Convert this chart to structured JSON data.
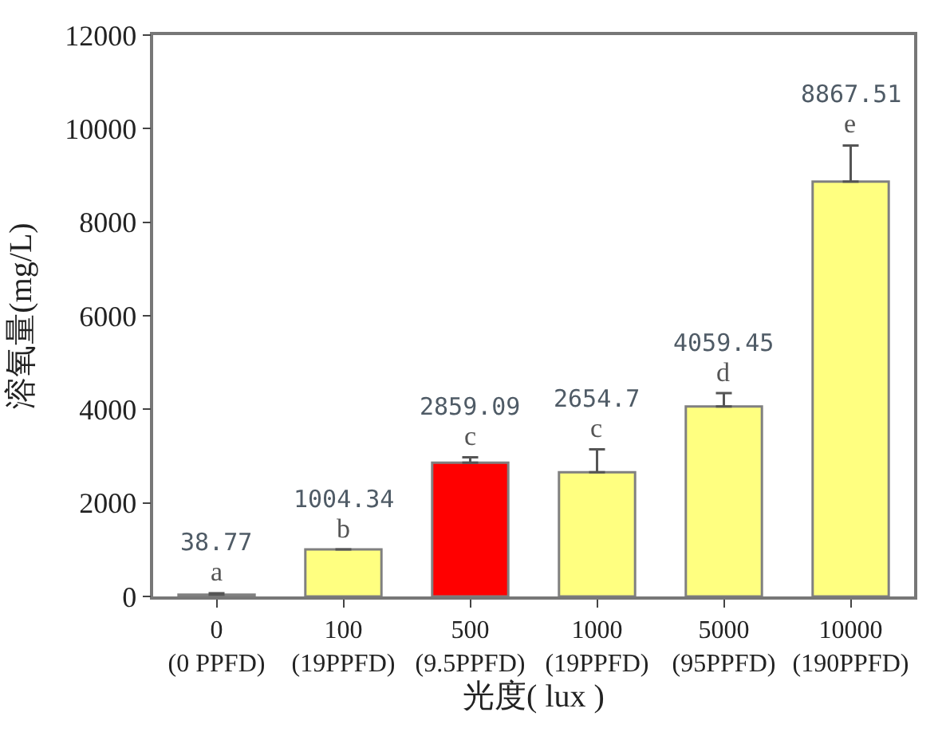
{
  "chart_data": {
    "type": "bar",
    "xlabel": "光度( lux )",
    "ylabel": "溶氧量(mg/L)",
    "categories": [
      "0\n(0 PPFD)",
      "100\n(19PPFD)",
      "500\n(9.5PPFD)",
      "1000\n(19PPFD)",
      "5000\n(95PPFD)",
      "10000\n(190PPFD)"
    ],
    "values": [
      38.77,
      1004.34,
      2859.09,
      2654.7,
      4059.45,
      8867.51
    ],
    "colors": [
      "#ffff80",
      "#ffff80",
      "#ff0000",
      "#ffff80",
      "#ffff80",
      "#ffff80"
    ],
    "errors": [
      30,
      null,
      115,
      490,
      285,
      770
    ],
    "value_labels": [
      "38.77",
      "1004.34",
      "2859.09",
      "2654.7",
      "4059.45",
      "8867.51"
    ],
    "annotations": [
      "a",
      "b",
      "c",
      "c",
      "d",
      "e"
    ],
    "ylim": [
      0,
      12000
    ],
    "yticks": [
      0,
      2000,
      4000,
      6000,
      8000,
      10000,
      12000
    ],
    "legend": false
  }
}
